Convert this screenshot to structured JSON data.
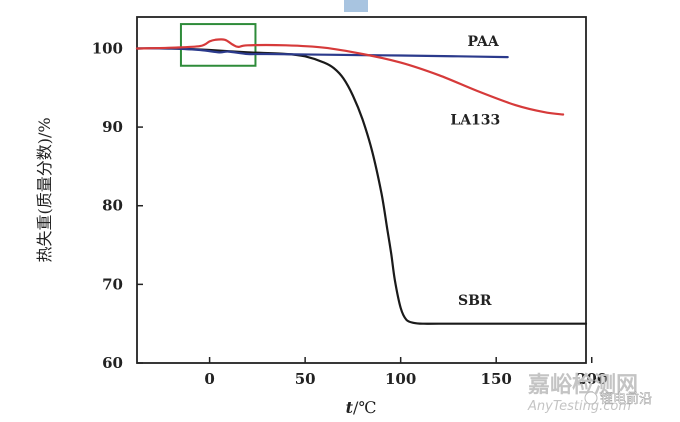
{
  "chart_data": {
    "type": "line",
    "xlabel_italic": "t",
    "xlabel_unit": "/℃",
    "ylabel": "热失重(质量分数)/%",
    "x_ticks": [
      0,
      50,
      100,
      150,
      200
    ],
    "x_tick_labels": [
      "0",
      "50",
      "100",
      "150",
      "200"
    ],
    "y_ticks": [
      60,
      70,
      80,
      90,
      100
    ],
    "y_tick_labels": [
      "60",
      "70",
      "80",
      "90",
      "100"
    ],
    "xlim": [
      -38,
      197
    ],
    "ylim": [
      60,
      104
    ],
    "grid": false,
    "highlight_box": {
      "x": [
        -15,
        24
      ],
      "y": [
        97.8,
        103.1
      ],
      "color": "#2e8b3a"
    },
    "series": [
      {
        "name": "SBR",
        "color": "#1a1a1a",
        "x": [
          -38,
          -20,
          0,
          20,
          40,
          50,
          60,
          65,
          70,
          75,
          80,
          85,
          90,
          93,
          95,
          97,
          100,
          103,
          107,
          112,
          120,
          150,
          197
        ],
        "y": [
          100,
          100,
          99.8,
          99.5,
          99.3,
          99.0,
          98.2,
          97.5,
          96.2,
          94.0,
          91.0,
          87.0,
          81.5,
          77.0,
          74.0,
          70.5,
          67.0,
          65.5,
          65.1,
          65.0,
          65.0,
          65.0,
          65.0
        ]
      },
      {
        "name": "PAA",
        "color": "#2b3a8c",
        "x": [
          -38,
          -20,
          -5,
          5,
          10,
          20,
          30,
          60,
          100,
          130,
          156
        ],
        "y": [
          100,
          100,
          99.8,
          99.5,
          99.6,
          99.3,
          99.3,
          99.2,
          99.1,
          99.0,
          98.9
        ]
      },
      {
        "name": "LA133",
        "color": "#d63a3a",
        "x": [
          -38,
          -20,
          -5,
          0,
          3,
          8,
          12,
          15,
          20,
          40,
          60,
          80,
          100,
          120,
          140,
          160,
          175,
          185
        ],
        "y": [
          100,
          100.1,
          100.3,
          100.9,
          101.1,
          101.1,
          100.5,
          100.2,
          100.4,
          100.4,
          100.1,
          99.3,
          98.2,
          96.6,
          94.6,
          92.8,
          91.9,
          91.6
        ]
      }
    ],
    "annotations": [
      {
        "text": "PAA",
        "x": 135,
        "y": 100.3
      },
      {
        "text": "LA133",
        "x": 126,
        "y": 90.3
      },
      {
        "text": "SBR",
        "x": 130,
        "y": 67.4
      }
    ]
  },
  "watermark": {
    "main": "嘉峪检测网",
    "sub": "AnyTesting.com",
    "account": "锂电前沿"
  }
}
